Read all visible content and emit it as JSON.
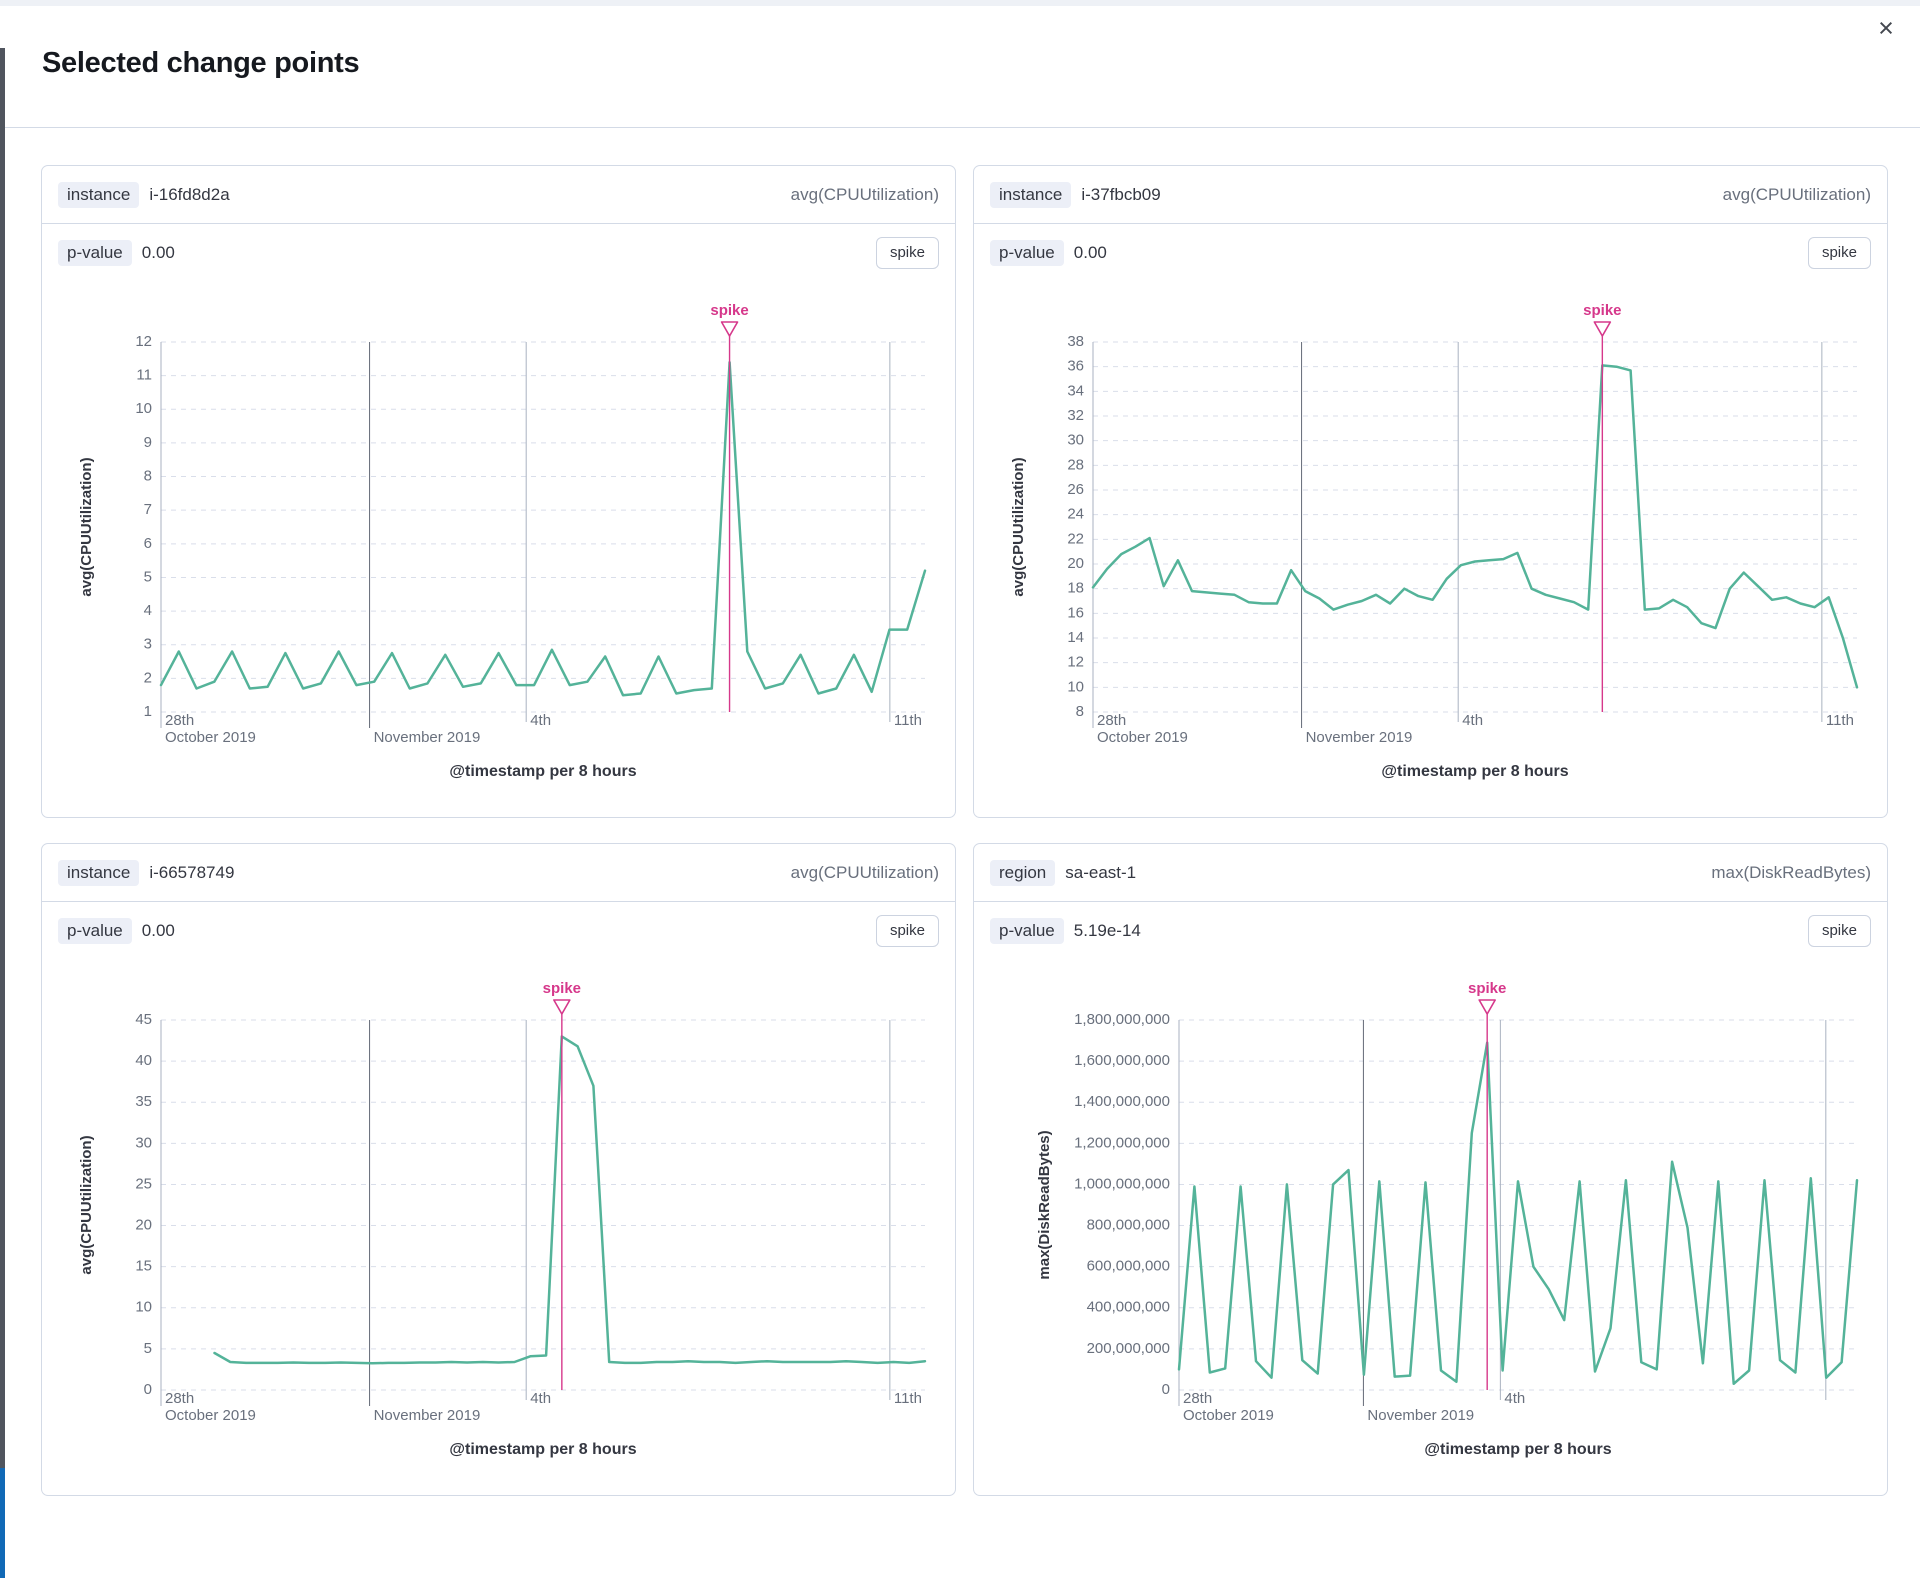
{
  "modal": {
    "title": "Selected change points",
    "close_icon": "×"
  },
  "colors": {
    "accent_pink": "#d6388b",
    "line_green": "#54b399",
    "grid_dashed": "#d9deea",
    "grid_major": "#aab2c0",
    "grid_month": "#646a76",
    "text_primary": "#343741",
    "text_secondary": "#69707d",
    "border": "#d3dae6"
  },
  "panels": [
    {
      "tag_label": "instance",
      "tag_value": "i-16fd8d2a",
      "metric": "avg(CPUUtilization)",
      "pvalue_label": "p-value",
      "pvalue": "0.00",
      "change_type": "spike",
      "chart_data": {
        "type": "line",
        "xlabel": "@timestamp per 8 hours",
        "ylabel": "avg(CPUUtilization)",
        "ylim": [
          1,
          12
        ],
        "ytick_step": 1,
        "x_start_frac": 0,
        "annotation_label": "spike",
        "spike_index": 32,
        "x_marks": [
          {
            "frac": 0.0,
            "top": "28th",
            "bottom": "October 2019"
          },
          {
            "frac": 0.273,
            "top": "",
            "bottom": "November 2019"
          },
          {
            "frac": 0.478,
            "top": "4th",
            "bottom": ""
          },
          {
            "frac": 0.954,
            "top": "11th",
            "bottom": ""
          }
        ],
        "values": [
          1.8,
          2.8,
          1.7,
          1.9,
          2.8,
          1.7,
          1.75,
          2.75,
          1.7,
          1.85,
          2.8,
          1.8,
          1.9,
          2.75,
          1.7,
          1.85,
          2.7,
          1.75,
          1.85,
          2.75,
          1.8,
          1.8,
          2.85,
          1.8,
          1.9,
          2.65,
          1.5,
          1.55,
          2.65,
          1.55,
          1.65,
          1.7,
          11.4,
          2.8,
          1.7,
          1.85,
          2.7,
          1.55,
          1.7,
          2.7,
          1.6,
          3.45,
          3.45,
          5.2
        ]
      }
    },
    {
      "tag_label": "instance",
      "tag_value": "i-37fbcb09",
      "metric": "avg(CPUUtilization)",
      "pvalue_label": "p-value",
      "pvalue": "0.00",
      "change_type": "spike",
      "chart_data": {
        "type": "line",
        "xlabel": "@timestamp per 8 hours",
        "ylabel": "avg(CPUUtilization)",
        "ylim": [
          8,
          38
        ],
        "ytick_step": 2,
        "x_start_frac": 0,
        "annotation_label": "spike",
        "spike_index": 36,
        "x_marks": [
          {
            "frac": 0.0,
            "top": "28th",
            "bottom": "October 2019"
          },
          {
            "frac": 0.273,
            "top": "",
            "bottom": "November 2019"
          },
          {
            "frac": 0.478,
            "top": "4th",
            "bottom": ""
          },
          {
            "frac": 0.954,
            "top": "11th",
            "bottom": ""
          }
        ],
        "values": [
          18.1,
          19.6,
          20.8,
          21.4,
          22.1,
          18.2,
          20.3,
          17.8,
          17.7,
          17.6,
          17.5,
          16.9,
          16.8,
          16.8,
          19.5,
          17.8,
          17.2,
          16.3,
          16.7,
          17.0,
          17.5,
          16.8,
          18.0,
          17.4,
          17.1,
          18.8,
          19.9,
          20.2,
          20.3,
          20.4,
          20.9,
          18.0,
          17.5,
          17.2,
          16.9,
          16.3,
          36.1,
          36.0,
          35.7,
          16.3,
          16.4,
          17.1,
          16.5,
          15.2,
          14.8,
          18.0,
          19.3,
          18.2,
          17.1,
          17.3,
          16.8,
          16.5,
          17.3,
          14.0,
          10.0
        ]
      }
    },
    {
      "tag_label": "instance",
      "tag_value": "i-66578749",
      "metric": "avg(CPUUtilization)",
      "pvalue_label": "p-value",
      "pvalue": "0.00",
      "change_type": "spike",
      "chart_data": {
        "type": "line",
        "xlabel": "@timestamp per 8 hours",
        "ylabel": "avg(CPUUtilization)",
        "ylim": [
          0,
          45
        ],
        "ytick_step": 5,
        "x_start_frac": 0.07,
        "annotation_label": "spike",
        "spike_index": 22,
        "x_marks": [
          {
            "frac": 0.0,
            "top": "28th",
            "bottom": "October 2019"
          },
          {
            "frac": 0.273,
            "top": "",
            "bottom": "November 2019"
          },
          {
            "frac": 0.478,
            "top": "4th",
            "bottom": ""
          },
          {
            "frac": 0.954,
            "top": "11th",
            "bottom": ""
          }
        ],
        "values": [
          4.5,
          3.4,
          3.3,
          3.3,
          3.3,
          3.35,
          3.3,
          3.3,
          3.35,
          3.3,
          3.25,
          3.3,
          3.3,
          3.35,
          3.35,
          3.4,
          3.35,
          3.4,
          3.35,
          3.4,
          4.1,
          4.2,
          43.0,
          41.8,
          37.0,
          3.4,
          3.3,
          3.3,
          3.4,
          3.4,
          3.5,
          3.4,
          3.4,
          3.3,
          3.4,
          3.5,
          3.4,
          3.4,
          3.4,
          3.4,
          3.5,
          3.4,
          3.3,
          3.4,
          3.3,
          3.5
        ]
      }
    },
    {
      "tag_label": "region",
      "tag_value": "sa-east-1",
      "metric": "max(DiskReadBytes)",
      "pvalue_label": "p-value",
      "pvalue": "5.19e-14",
      "change_type": "spike",
      "chart_data": {
        "type": "line",
        "xlabel": "@timestamp per 8 hours",
        "ylabel": "max(DiskReadBytes)",
        "ylim": [
          0,
          1800000000
        ],
        "ytick_step": 200000000,
        "x_start_frac": 0,
        "annotation_label": "spike",
        "spike_index": 20,
        "x_marks": [
          {
            "frac": 0.0,
            "top": "28th",
            "bottom": "October 2019"
          },
          {
            "frac": 0.272,
            "top": "",
            "bottom": "November 2019"
          },
          {
            "frac": 0.474,
            "top": "4th",
            "bottom": ""
          },
          {
            "frac": 0.954,
            "top": "",
            "bottom": ""
          }
        ],
        "values": [
          100000000,
          990000000,
          85000000,
          105000000,
          990000000,
          140000000,
          60000000,
          1000000000,
          145000000,
          80000000,
          1000000000,
          1070000000,
          75000000,
          1015000000,
          65000000,
          70000000,
          1010000000,
          95000000,
          40000000,
          1250000000,
          1690000000,
          95000000,
          1015000000,
          600000000,
          490000000,
          340000000,
          1015000000,
          90000000,
          300000000,
          1020000000,
          135000000,
          100000000,
          1110000000,
          790000000,
          130000000,
          1015000000,
          30000000,
          95000000,
          1020000000,
          145000000,
          85000000,
          1030000000,
          60000000,
          135000000,
          1020000000
        ]
      }
    }
  ]
}
